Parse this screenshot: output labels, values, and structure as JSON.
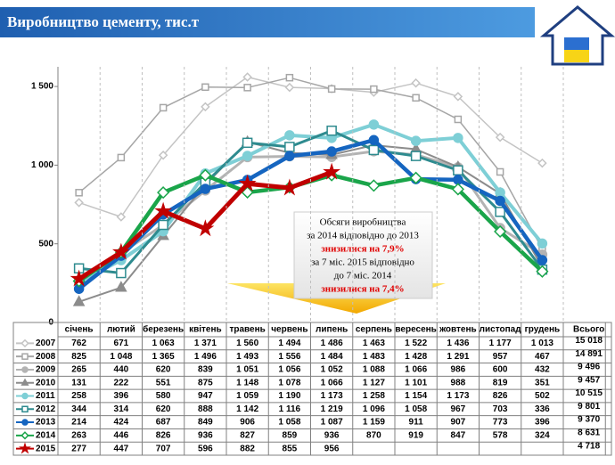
{
  "chart_data": {
    "type": "line",
    "title": "Виробництво цементу, тис.т",
    "categories": [
      "січень",
      "лютий",
      "березень",
      "квітень",
      "травень",
      "червень",
      "липень",
      "серпень",
      "вересень",
      "жовтень",
      "листопад",
      "грудень"
    ],
    "total_header": "Всього",
    "ylim": [
      0,
      1625
    ],
    "yticks": [
      0,
      500,
      {
        "value": 1000,
        "label": "1 000"
      },
      {
        "value": 1500,
        "label": "1 500"
      }
    ],
    "grid": true,
    "series": [
      {
        "name": "2007",
        "color": "#c4c4c4",
        "marker": "diamond",
        "values": [
          762,
          671,
          1063,
          1371,
          1560,
          1494,
          1486,
          1463,
          1522,
          1436,
          1177,
          1013
        ],
        "value_labels": [
          "762",
          "671",
          "1 063",
          "1 371",
          "1 560",
          "1 494",
          "1 486",
          "1 463",
          "1 522",
          "1 436",
          "1 177",
          "1 013"
        ],
        "total": 15018,
        "total_label": "15 018"
      },
      {
        "name": "2008",
        "color": "#a6a6a6",
        "marker": "square",
        "values": [
          825,
          1048,
          1365,
          1496,
          1493,
          1556,
          1484,
          1483,
          1428,
          1291,
          957,
          467
        ],
        "value_labels": [
          "825",
          "1 048",
          "1 365",
          "1 496",
          "1 493",
          "1 556",
          "1 484",
          "1 483",
          "1 428",
          "1 291",
          "957",
          "467"
        ],
        "total": 14891,
        "total_label": "14 891"
      },
      {
        "name": "2009",
        "color": "#b3b3b3",
        "marker": "circle",
        "values": [
          265,
          440,
          620,
          839,
          1051,
          1056,
          1052,
          1088,
          1066,
          986,
          600,
          432
        ],
        "value_labels": [
          "265",
          "440",
          "620",
          "839",
          "1 051",
          "1 056",
          "1 052",
          "1 088",
          "1 066",
          "986",
          "600",
          "432"
        ],
        "total": 9496,
        "total_label": "9 496"
      },
      {
        "name": "2010",
        "color": "#8c8c8c",
        "marker": "triangle",
        "values": [
          131,
          222,
          551,
          875,
          1148,
          1078,
          1066,
          1127,
          1101,
          988,
          819,
          351
        ],
        "value_labels": [
          "131",
          "222",
          "551",
          "875",
          "1 148",
          "1 078",
          "1 066",
          "1 127",
          "1 101",
          "988",
          "819",
          "351"
        ],
        "total": 9457,
        "total_label": "9 457"
      },
      {
        "name": "2011",
        "color": "#7ecfd6",
        "marker": "circle",
        "values": [
          258,
          396,
          580,
          947,
          1059,
          1190,
          1173,
          1258,
          1154,
          1173,
          826,
          502
        ],
        "value_labels": [
          "258",
          "396",
          "580",
          "947",
          "1 059",
          "1 190",
          "1 173",
          "1 258",
          "1 154",
          "1 173",
          "826",
          "502"
        ],
        "total": 10515,
        "total_label": "10 515"
      },
      {
        "name": "2012",
        "color": "#2e8b8f",
        "marker": "square",
        "values": [
          344,
          314,
          620,
          888,
          1142,
          1116,
          1219,
          1096,
          1058,
          967,
          703,
          336
        ],
        "value_labels": [
          "344",
          "314",
          "620",
          "888",
          "1 142",
          "1 116",
          "1 219",
          "1 096",
          "1 058",
          "967",
          "703",
          "336"
        ],
        "total": 9801,
        "total_label": "9 801"
      },
      {
        "name": "2013",
        "color": "#1565c0",
        "marker": "circle",
        "values": [
          214,
          424,
          687,
          849,
          906,
          1058,
          1087,
          1159,
          911,
          907,
          773,
          396
        ],
        "value_labels": [
          "214",
          "424",
          "687",
          "849",
          "906",
          "1 058",
          "1 087",
          "1 159",
          "911",
          "907",
          "773",
          "396"
        ],
        "total": 9370,
        "total_label": "9 370"
      },
      {
        "name": "2014",
        "color": "#1aa54a",
        "marker": "diamond",
        "values": [
          263,
          446,
          826,
          936,
          827,
          859,
          936,
          870,
          919,
          847,
          578,
          324
        ],
        "value_labels": [
          "263",
          "446",
          "826",
          "936",
          "827",
          "859",
          "936",
          "870",
          "919",
          "847",
          "578",
          "324"
        ],
        "total": 8631,
        "total_label": "8 631"
      },
      {
        "name": "2015",
        "color": "#c00000",
        "marker": "star",
        "values": [
          277,
          447,
          707,
          596,
          882,
          855,
          956,
          null,
          null,
          null,
          null,
          null
        ],
        "value_labels": [
          "277",
          "447",
          "707",
          "596",
          "882",
          "855",
          "956",
          null,
          null,
          null,
          null,
          null
        ],
        "total": 4718,
        "total_label": "4 718"
      }
    ],
    "annotation": {
      "lines": [
        "Обсяги виробництва",
        "за 2014 відповідно до 2013",
        "знизилися на 7,9%",
        "за 7 міс. 2015 відповідно",
        "до 7 міс. 2014",
        "знизилися на 7,4%"
      ],
      "highlight_color": "#e00000"
    }
  }
}
